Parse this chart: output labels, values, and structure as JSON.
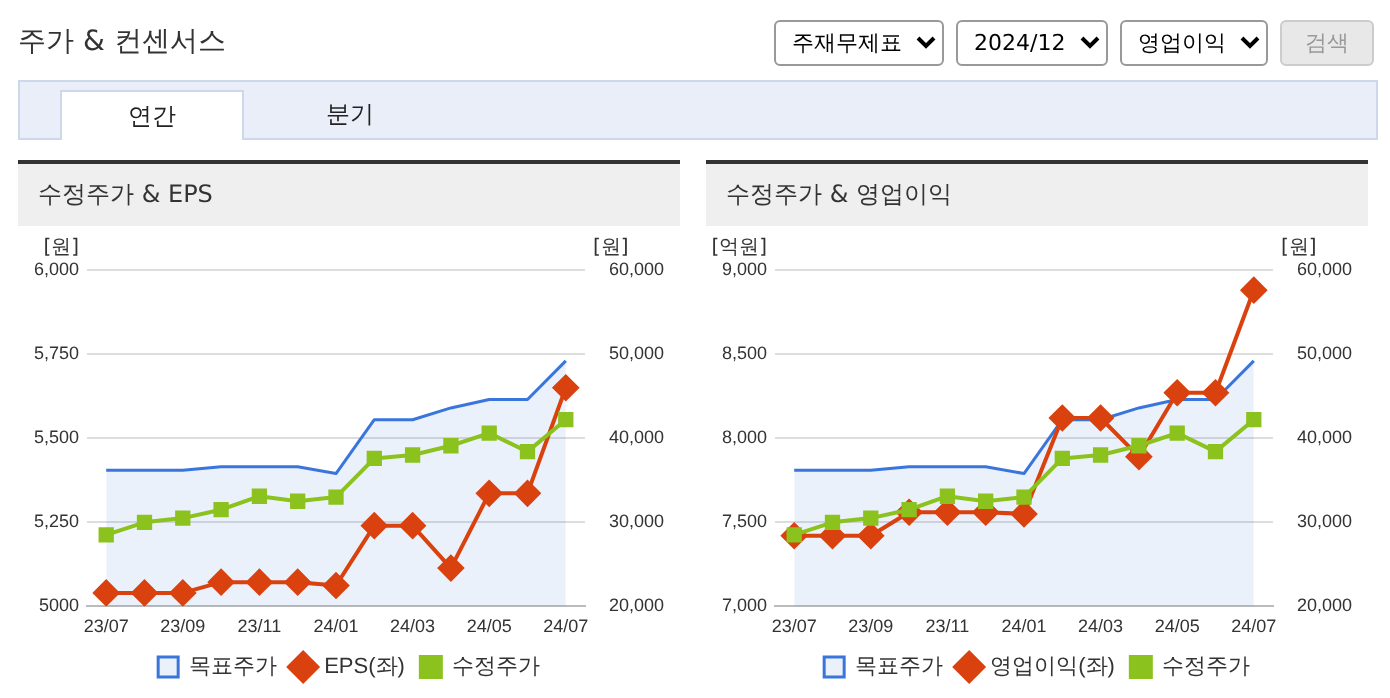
{
  "chart_data": [
    {
      "type": "other",
      "title": "주가 & 컨센서스",
      "annotations": [
        "주재무제표",
        "2024/12",
        "영업이익",
        "검색",
        "연간",
        "분기"
      ]
    },
    {
      "type": "line",
      "title": "수정주가 & EPS",
      "categories": [
        "23/07",
        null,
        "23/09",
        null,
        "23/11",
        null,
        "24/01",
        null,
        "24/03",
        null,
        "24/05",
        null,
        "24/07"
      ],
      "ylabel": "[원]",
      "y2label": "[원]",
      "ylim": [
        5000,
        6000
      ],
      "yticks": [
        5000,
        {
          "value": 5250,
          "label": "5,250"
        },
        {
          "value": 5500,
          "label": "5,500"
        },
        {
          "value": 5750,
          "label": "5,750"
        },
        {
          "value": 6000,
          "label": "6,000"
        }
      ],
      "y2lim": [
        20000,
        60000
      ],
      "y2ticks": [
        {
          "value": 20000,
          "label": "20,000"
        },
        {
          "value": 30000,
          "label": "30,000"
        },
        {
          "value": 40000,
          "label": "40,000"
        },
        {
          "value": 50000,
          "label": "50,000"
        },
        {
          "value": 60000,
          "label": "60,000"
        }
      ],
      "grid": "y",
      "legend": "bottom",
      "series": [
        {
          "name": "목표주가",
          "type": "area",
          "axis": "y2",
          "marker": "none",
          "color": "#3a75dc",
          "values": [
            36200,
            36200,
            36200,
            36600,
            36600,
            36600,
            35800,
            42200,
            42200,
            43600,
            44600,
            44600,
            49200
          ]
        },
        {
          "name": "EPS(좌)",
          "axis": "y",
          "marker": "diamond",
          "color": "#d9420f",
          "values": [
            5040,
            5040,
            5040,
            5072,
            5072,
            5072,
            5062,
            5240,
            5240,
            5114,
            5336,
            5336,
            5650
          ]
        },
        {
          "name": "수정주가",
          "axis": "y2",
          "marker": "square",
          "color": "#8cc21e",
          "values": [
            28500,
            30000,
            30500,
            31500,
            33100,
            32500,
            33000,
            37600,
            38000,
            39100,
            40600,
            38400,
            42200
          ]
        }
      ]
    },
    {
      "type": "line",
      "title": "수정주가 & 영업이익",
      "categories": [
        "23/07",
        null,
        "23/09",
        null,
        "23/11",
        null,
        "24/01",
        null,
        "24/03",
        null,
        "24/05",
        null,
        "24/07"
      ],
      "ylabel": "[억원]",
      "y2label": "[원]",
      "ylim": [
        7000,
        9000
      ],
      "yticks": [
        {
          "value": 7000,
          "label": "7,000"
        },
        {
          "value": 7500,
          "label": "7,500"
        },
        {
          "value": 8000,
          "label": "8,000"
        },
        {
          "value": 8500,
          "label": "8,500"
        },
        {
          "value": 9000,
          "label": "9,000"
        }
      ],
      "y2lim": [
        20000,
        60000
      ],
      "y2ticks": [
        {
          "value": 20000,
          "label": "20,000"
        },
        {
          "value": 30000,
          "label": "30,000"
        },
        {
          "value": 40000,
          "label": "40,000"
        },
        {
          "value": 50000,
          "label": "50,000"
        },
        {
          "value": 60000,
          "label": "60,000"
        }
      ],
      "grid": "y",
      "legend": "bottom",
      "series": [
        {
          "name": "목표주가",
          "type": "area",
          "axis": "y2",
          "marker": "none",
          "color": "#3a75dc",
          "values": [
            36200,
            36200,
            36200,
            36600,
            36600,
            36600,
            35800,
            42200,
            42200,
            43600,
            44600,
            44600,
            49200
          ]
        },
        {
          "name": "영업이익(좌)",
          "axis": "y",
          "marker": "diamond",
          "color": "#d9420f",
          "values": [
            7420,
            7420,
            7420,
            7560,
            7560,
            7560,
            7550,
            8120,
            8120,
            7890,
            8270,
            8270,
            8880
          ]
        },
        {
          "name": "수정주가",
          "axis": "y2",
          "marker": "square",
          "color": "#8cc21e",
          "values": [
            28500,
            30000,
            30500,
            31500,
            33100,
            32500,
            33000,
            37600,
            38000,
            39100,
            40600,
            38400,
            42200
          ]
        }
      ]
    }
  ]
}
